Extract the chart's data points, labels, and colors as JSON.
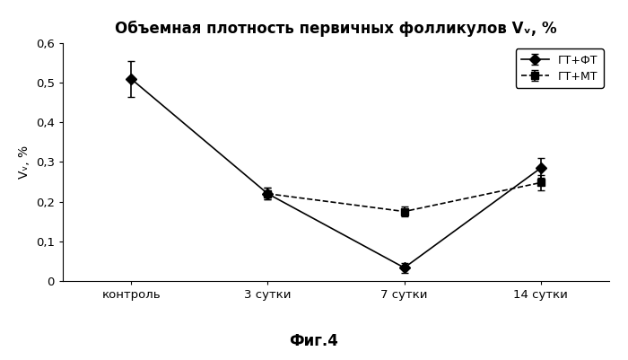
{
  "title": "Объемная плотность первичных фолликулов Vᵥ, %",
  "ylabel": "Vᵥ, %",
  "fig_label": "Фиг.4",
  "x_positions": [
    0,
    1,
    2,
    3
  ],
  "x_labels": [
    "контроль",
    "3 сутки",
    "7 сутки",
    "14 сутки"
  ],
  "series1_label": "ГТ+ФТ",
  "series1_y": [
    0.51,
    0.22,
    0.033,
    0.285
  ],
  "series1_yerr": [
    0.045,
    0.015,
    0.012,
    0.025
  ],
  "series1_color": "#000000",
  "series1_linestyle": "-",
  "series1_marker": "D",
  "series2_label": "ГТ+МТ",
  "series2_y": [
    0.22,
    0.175,
    0.248
  ],
  "series2_yerr": [
    0.015,
    0.012,
    0.02
  ],
  "series2_color": "#000000",
  "series2_linestyle": "--",
  "series2_marker": "s",
  "ylim": [
    0,
    0.6
  ],
  "yticks": [
    0,
    0.1,
    0.2,
    0.3,
    0.4,
    0.5,
    0.6
  ],
  "ytick_labels": [
    "0",
    "0,1",
    "0,2",
    "0,3",
    "0,4",
    "0,5",
    "0,6"
  ],
  "background_color": "#ffffff",
  "title_fontsize": 12,
  "axis_fontsize": 10,
  "tick_fontsize": 9.5,
  "legend_fontsize": 9,
  "fig_label_fontsize": 12
}
